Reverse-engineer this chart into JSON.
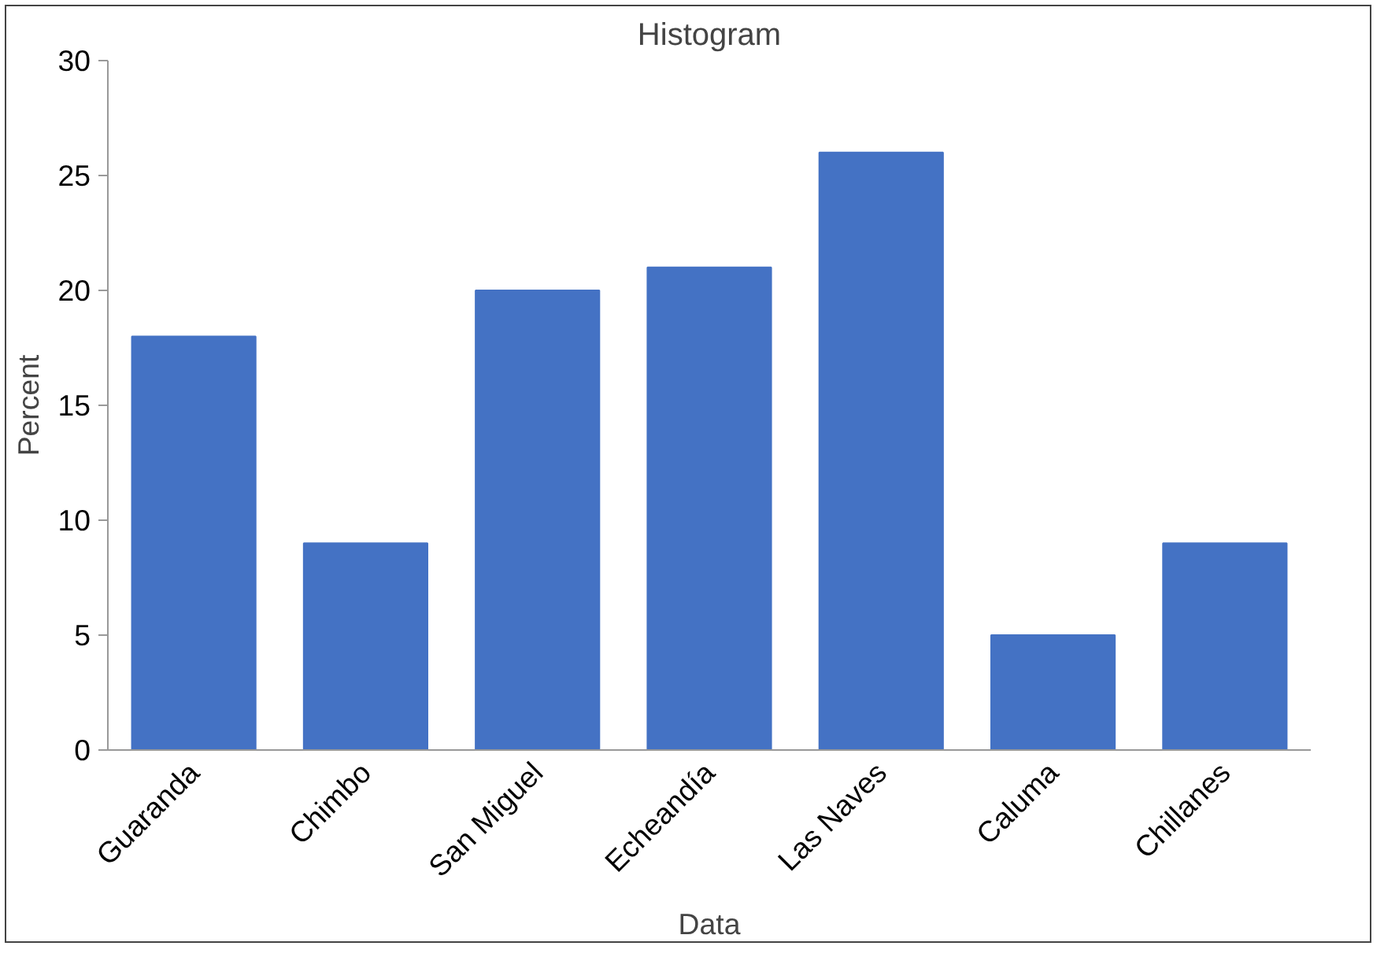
{
  "chart_data": {
    "type": "bar",
    "title": "Histogram",
    "xlabel": "Data",
    "ylabel": "Percent",
    "categories": [
      "Guaranda",
      "Chimbo",
      "San Miguel",
      "Echeandía",
      "Las Naves",
      "Caluma",
      "Chillanes"
    ],
    "values": [
      18,
      9,
      20,
      21,
      26,
      5,
      9
    ],
    "color": "#4472c4",
    "ylim": [
      0,
      30
    ],
    "yticks": [
      0,
      5,
      10,
      15,
      20,
      25,
      30
    ],
    "grid": false
  }
}
